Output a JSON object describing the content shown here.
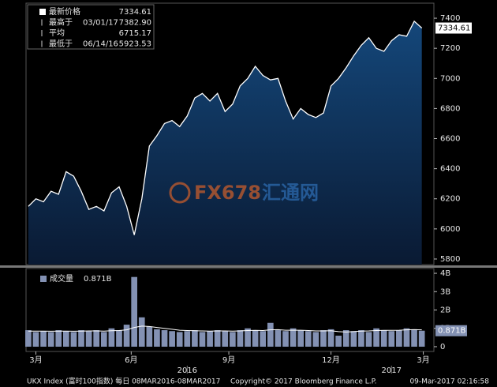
{
  "chart_data": [
    {
      "type": "area",
      "color": "#ffffff",
      "fill_top": "#14477a",
      "fill_bottom": "#0a1a33",
      "x": [
        0,
        1,
        2,
        3,
        4,
        5,
        6,
        7,
        8,
        9,
        10,
        11,
        12,
        13,
        14,
        15,
        16,
        17,
        18,
        19,
        20,
        21,
        22,
        23,
        24,
        25,
        26,
        27,
        28,
        29,
        30,
        31,
        32,
        33,
        34,
        35,
        36,
        37,
        38,
        39,
        40,
        41,
        42,
        43,
        44,
        45,
        46,
        47,
        48,
        49,
        50,
        51,
        52
      ],
      "series": [
        {
          "name": "最新价格",
          "color": "#ffffff",
          "values": [
            6150,
            6200,
            6180,
            6250,
            6230,
            6380,
            6350,
            6250,
            6130,
            6150,
            6120,
            6240,
            6280,
            6150,
            5960,
            6200,
            6550,
            6620,
            6700,
            6720,
            6680,
            6750,
            6870,
            6900,
            6850,
            6900,
            6780,
            6830,
            6950,
            7000,
            7080,
            7020,
            6990,
            7000,
            6850,
            6730,
            6800,
            6760,
            6740,
            6770,
            6950,
            7000,
            7070,
            7150,
            7220,
            7270,
            7200,
            7180,
            7250,
            7290,
            7280,
            7380,
            7334.61
          ]
        }
      ],
      "xlim": [
        -0.3,
        53.6
      ],
      "ylim": [
        5763,
        7500
      ],
      "yticks": [
        5800,
        6000,
        6200,
        6400,
        6600,
        6800,
        7000,
        7200,
        7400
      ],
      "last_label": "7334.61",
      "legend": [
        {
          "name": "最新价格",
          "date": "",
          "value": "7334.61"
        },
        {
          "name": "最高于",
          "date": "03/01/17",
          "value": "7382.90"
        },
        {
          "name": "平均",
          "date": "",
          "value": "6715.17"
        },
        {
          "name": "最低于",
          "date": "06/14/16",
          "value": "5923.53"
        }
      ],
      "watermark": [
        "FX678",
        "汇通网"
      ]
    },
    {
      "type": "bar",
      "title": "成交量",
      "title_value": "0.871B",
      "x": [
        0,
        1,
        2,
        3,
        4,
        5,
        6,
        7,
        8,
        9,
        10,
        11,
        12,
        13,
        14,
        15,
        16,
        17,
        18,
        19,
        20,
        21,
        22,
        23,
        24,
        25,
        26,
        27,
        28,
        29,
        30,
        31,
        32,
        33,
        34,
        35,
        36,
        37,
        38,
        39,
        40,
        41,
        42,
        43,
        44,
        45,
        46,
        47,
        48,
        49,
        50,
        51,
        52
      ],
      "series": [
        {
          "name": "成交量",
          "color": "#8391b3",
          "values": [
            0.9,
            0.8,
            0.85,
            0.8,
            0.9,
            0.85,
            0.8,
            0.9,
            0.85,
            0.9,
            0.8,
            1.0,
            0.9,
            1.2,
            3.8,
            1.6,
            1.1,
            0.95,
            0.9,
            0.85,
            0.8,
            0.85,
            0.9,
            0.8,
            0.85,
            0.9,
            0.85,
            0.8,
            0.9,
            1.0,
            0.9,
            0.85,
            1.3,
            0.9,
            0.85,
            1.0,
            0.9,
            0.85,
            0.8,
            0.9,
            0.95,
            0.6,
            0.9,
            0.85,
            0.9,
            0.8,
            1.0,
            0.9,
            0.85,
            0.9,
            1.0,
            0.95,
            0.871
          ]
        },
        {
          "name": "均线",
          "color": "#ffffff",
          "values": [
            0.85,
            0.85,
            0.85,
            0.84,
            0.85,
            0.85,
            0.84,
            0.85,
            0.86,
            0.86,
            0.85,
            0.87,
            0.88,
            0.92,
            1.05,
            1.12,
            1.1,
            1.05,
            1.0,
            0.95,
            0.9,
            0.88,
            0.87,
            0.86,
            0.85,
            0.86,
            0.86,
            0.85,
            0.86,
            0.88,
            0.89,
            0.88,
            0.92,
            0.93,
            0.9,
            0.9,
            0.9,
            0.88,
            0.86,
            0.86,
            0.87,
            0.82,
            0.8,
            0.82,
            0.85,
            0.86,
            0.88,
            0.89,
            0.89,
            0.9,
            0.92,
            0.93,
            0.92
          ]
        }
      ],
      "xlim": [
        -0.3,
        53.6
      ],
      "ylim": [
        -0.26,
        4.26
      ],
      "yticks": [
        {
          "value": 0,
          "label": "0"
        },
        {
          "value": 1,
          "label": "1B"
        },
        {
          "value": 2,
          "label": "2B"
        },
        {
          "value": 3,
          "label": "3B"
        },
        {
          "value": 4,
          "label": "4B"
        }
      ],
      "last_label": "0.871B",
      "xticks": [
        {
          "value": 1,
          "label": "3月"
        },
        {
          "value": 13.6,
          "label": "6月"
        },
        {
          "value": 26.5,
          "label": "9月"
        },
        {
          "value": 40,
          "label": "12月"
        },
        {
          "value": 52.2,
          "label": "3月"
        }
      ],
      "year_labels": [
        {
          "value": 21,
          "label": "2016"
        },
        {
          "value": 48,
          "label": "2017"
        }
      ]
    }
  ],
  "footer": {
    "left": "UKX Index (富时100指数)  每日 08MAR2016-08MAR2017",
    "center": "Copyright© 2017 Bloomberg Finance L.P.",
    "right": "09-Mar-2017 02:16:58"
  }
}
